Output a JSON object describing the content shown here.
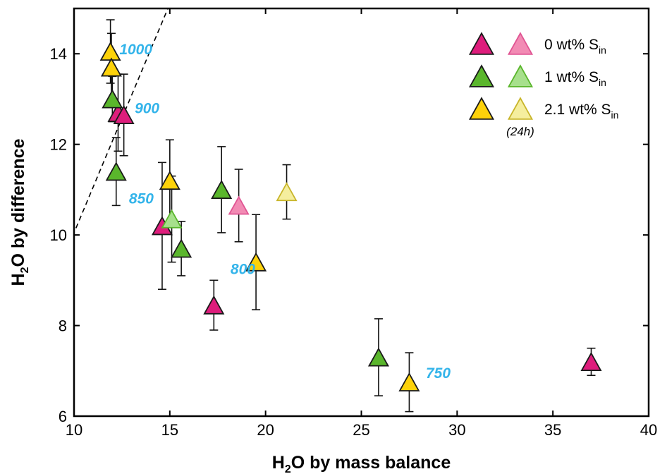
{
  "chart_data": {
    "type": "scatter",
    "xlabel": {
      "prefix": "H",
      "sub": "2",
      "suffix": "O by mass balance"
    },
    "ylabel": {
      "prefix": "H",
      "sub": "2",
      "suffix": "O by difference"
    },
    "xlim": [
      10,
      40
    ],
    "ylim": [
      6,
      15
    ],
    "xticks": [
      10,
      15,
      20,
      25,
      30,
      35,
      40
    ],
    "yticks": [
      6,
      8,
      10,
      12,
      14
    ],
    "grid": false,
    "reference_line": {
      "style": "dashed",
      "points": [
        [
          10.1,
          10.15
        ],
        [
          14.9,
          15.0
        ]
      ]
    },
    "colors": {
      "magenta": "#de1d7c",
      "pink": "#f28bb4",
      "green": "#5ab62c",
      "light_green": "#a7e08c",
      "yellow": "#fdd20a",
      "light_yellow": "#f5ee9e"
    },
    "series": [
      {
        "name": "0 wt% S",
        "sub": "in",
        "color": "#de1d7c",
        "stroke": "#1a1a1a",
        "points": [
          {
            "x": 12.3,
            "y": 12.7,
            "err": 0.85
          },
          {
            "x": 12.6,
            "y": 12.65,
            "err": 0.9
          },
          {
            "x": 14.6,
            "y": 10.2,
            "err": 1.4
          },
          {
            "x": 17.3,
            "y": 8.45,
            "err": 0.55
          },
          {
            "x": 37.0,
            "y": 7.2,
            "err": 0.3
          }
        ]
      },
      {
        "name": "0 wt% S (24h)",
        "sub": "in",
        "color": "#f28bb4",
        "stroke": "#e05593",
        "points": [
          {
            "x": 18.6,
            "y": 10.65,
            "err": 0.8
          }
        ]
      },
      {
        "name": "1 wt% S",
        "sub": "in",
        "color": "#5ab62c",
        "stroke": "#1a1a1a",
        "points": [
          {
            "x": 12.0,
            "y": 13.0,
            "err": 0.5
          },
          {
            "x": 12.2,
            "y": 11.4,
            "err": 0.75
          },
          {
            "x": 15.6,
            "y": 9.7,
            "err": 0.6
          },
          {
            "x": 17.7,
            "y": 11.0,
            "err": 0.95
          },
          {
            "x": 25.9,
            "y": 7.3,
            "err": 0.85
          }
        ]
      },
      {
        "name": "1 wt% S (24h)",
        "sub": "in",
        "color": "#a7e08c",
        "stroke": "#5ab62c",
        "points": [
          {
            "x": 15.1,
            "y": 10.35,
            "err": 0.95
          }
        ]
      },
      {
        "name": "2.1 wt% S",
        "sub": "in",
        "color": "#fdd20a",
        "stroke": "#1a1a1a",
        "points": [
          {
            "x": 11.9,
            "y": 14.05,
            "err": 0.7
          },
          {
            "x": 11.95,
            "y": 13.7,
            "err": 0.75
          },
          {
            "x": 15.0,
            "y": 11.2,
            "err": 0.9
          },
          {
            "x": 19.5,
            "y": 9.4,
            "err": 1.05
          },
          {
            "x": 27.5,
            "y": 6.75,
            "err": 0.65
          }
        ]
      },
      {
        "name": "2.1 wt% S (24h)",
        "sub": "in",
        "color": "#f5ee9e",
        "stroke": "#c8b52a",
        "points": [
          {
            "x": 21.1,
            "y": 10.95,
            "err": 0.6
          }
        ]
      }
    ],
    "annotations": [
      {
        "text": "1000",
        "x": 12.0,
        "y": 14.1,
        "color": "#33b4ea"
      },
      {
        "text": "900",
        "x": 12.8,
        "y": 12.8,
        "color": "#33b4ea"
      },
      {
        "text": "850",
        "x": 12.5,
        "y": 10.8,
        "color": "#33b4ea"
      },
      {
        "text": "800",
        "x": 17.8,
        "y": 9.25,
        "color": "#33b4ea"
      },
      {
        "text": "750",
        "x": 28.0,
        "y": 6.95,
        "color": "#33b4ea"
      }
    ],
    "legend": {
      "position": "top-right",
      "entries": [
        {
          "label": "0 wt% S",
          "sub": "in",
          "colors": [
            "#de1d7c",
            "#f28bb4"
          ],
          "strokes": [
            "#1a1a1a",
            "#e05593"
          ]
        },
        {
          "label": "1 wt% S",
          "sub": "in",
          "colors": [
            "#5ab62c",
            "#a7e08c"
          ],
          "strokes": [
            "#1a1a1a",
            "#5ab62c"
          ]
        },
        {
          "label": "2.1 wt% S",
          "sub": "in",
          "colors": [
            "#fdd20a",
            "#f5ee9e"
          ],
          "strokes": [
            "#1a1a1a",
            "#c8b52a"
          ]
        }
      ],
      "note": "(24h)"
    }
  }
}
